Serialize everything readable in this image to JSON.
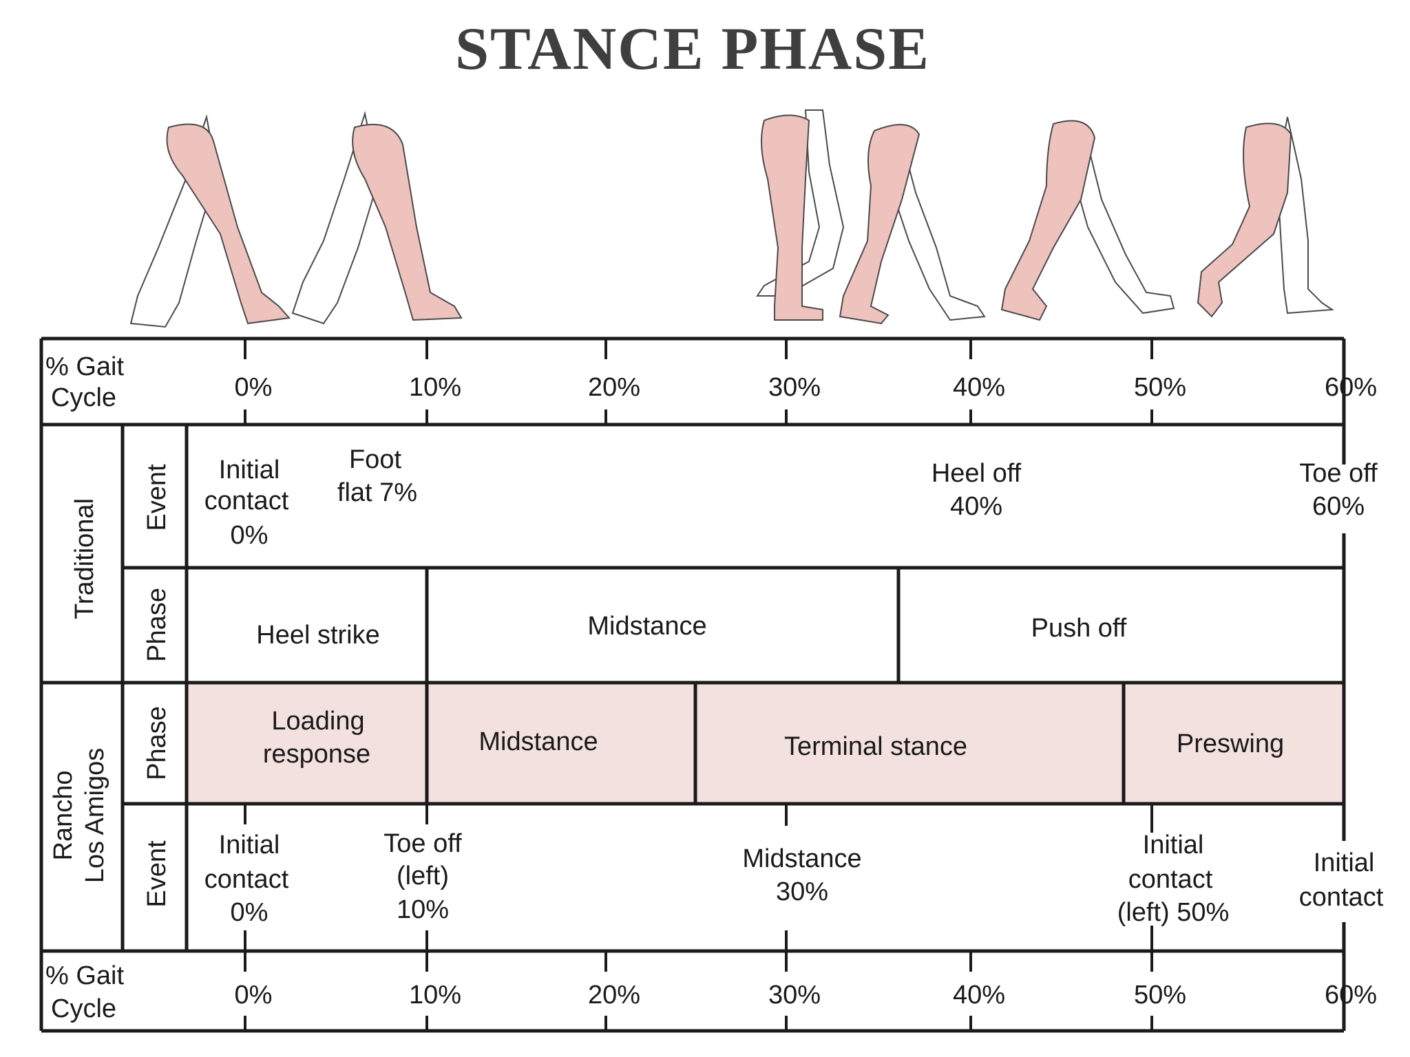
{
  "title": "STANCE PHASE",
  "colors": {
    "rancho_fill": "#f3e1df",
    "leg_fill": "#eec3bd",
    "line": "#1a1a1a"
  },
  "gait_cycle_label": [
    "% Gait",
    "Cycle"
  ],
  "ticks": [
    "0%",
    "10%",
    "20%",
    "30%",
    "40%",
    "50%",
    "60%"
  ],
  "traditional": {
    "group_label": "Traditional",
    "event_label": "Event",
    "phase_label": "Phase",
    "events": [
      {
        "lines": [
          "Initial",
          "contact",
          "0%"
        ]
      },
      {
        "lines": [
          "Foot",
          "flat 7%"
        ]
      },
      {
        "lines": [
          "Heel off",
          "40%"
        ]
      },
      {
        "lines": [
          "Toe off",
          "60%"
        ]
      }
    ],
    "phases": [
      "Heel strike",
      "Midstance",
      "Push off"
    ]
  },
  "rancho": {
    "group_label": [
      "Rancho",
      "Los Amigos"
    ],
    "phase_label": "Phase",
    "event_label": "Event",
    "phases": [
      {
        "lines": [
          "Loading",
          "response"
        ]
      },
      {
        "lines": [
          "Midstance"
        ]
      },
      {
        "lines": [
          "Terminal stance"
        ]
      },
      {
        "lines": [
          "Preswing"
        ]
      }
    ],
    "events": [
      {
        "lines": [
          "Initial",
          "contact",
          "0%"
        ]
      },
      {
        "lines": [
          "Toe off",
          "(left)",
          "10%"
        ]
      },
      {
        "lines": [
          "Midstance",
          "30%"
        ]
      },
      {
        "lines": [
          "Initial",
          "contact",
          "(left) 50%"
        ]
      },
      {
        "lines": [
          "Initial",
          "contact"
        ]
      }
    ]
  }
}
